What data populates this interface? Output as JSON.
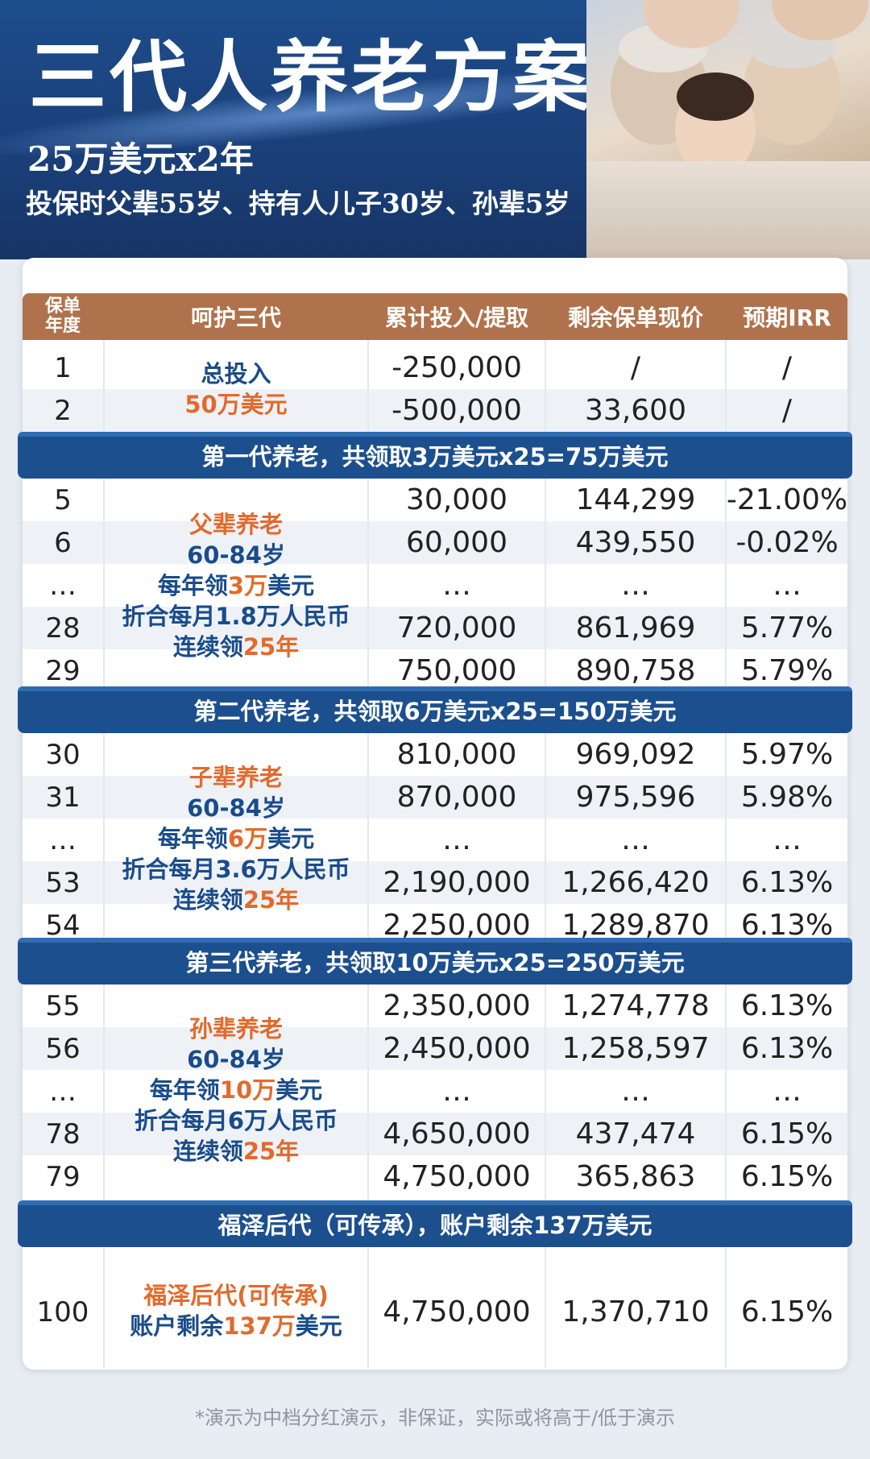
{
  "header": {
    "title": "三代人养老方案",
    "subtitle": "25万美元x2年",
    "subtitle2": "投保时父辈55岁、持有人儿子30岁、孙辈5岁"
  },
  "table": {
    "columns": [
      "保单年度",
      "呵护三代",
      "累计投入/提取",
      "剩余保单现价",
      "预期IRR"
    ],
    "column_year_line1": "保单",
    "column_year_line2": "年度",
    "intro": {
      "desc_line1": "总投入",
      "desc_line2": "50万美元",
      "rows": [
        {
          "year": "1",
          "amount": "-250,000",
          "value": "/",
          "irr": "/"
        },
        {
          "year": "2",
          "amount": "-500,000",
          "value": "33,600",
          "irr": "/"
        }
      ]
    },
    "sections": [
      {
        "banner": "第一代养老，共领取3万美元x25=75万美元",
        "desc": {
          "name": "父辈养老",
          "age": "60-84岁",
          "yearly_a": "每年领",
          "yearly_b": "3万",
          "yearly_c": "美元",
          "monthly": "折合每月1.8万人民币",
          "cont_a": "连续领",
          "cont_b": "25年"
        },
        "rows": [
          {
            "year": "5",
            "amount": "30,000",
            "value": "144,299",
            "irr": "-21.00%"
          },
          {
            "year": "6",
            "amount": "60,000",
            "value": "439,550",
            "irr": "-0.02%"
          },
          {
            "year": "…",
            "amount": "…",
            "value": "…",
            "irr": "…"
          },
          {
            "year": "28",
            "amount": "720,000",
            "value": "861,969",
            "irr": "5.77%"
          },
          {
            "year": "29",
            "amount": "750,000",
            "value": "890,758",
            "irr": "5.79%"
          }
        ]
      },
      {
        "banner": "第二代养老，共领取6万美元x25=150万美元",
        "desc": {
          "name": "子辈养老",
          "age": "60-84岁",
          "yearly_a": "每年领",
          "yearly_b": "6万",
          "yearly_c": "美元",
          "monthly": "折合每月3.6万人民币",
          "cont_a": "连续领",
          "cont_b": "25年"
        },
        "rows": [
          {
            "year": "30",
            "amount": "810,000",
            "value": "969,092",
            "irr": "5.97%"
          },
          {
            "year": "31",
            "amount": "870,000",
            "value": "975,596",
            "irr": "5.98%"
          },
          {
            "year": "…",
            "amount": "…",
            "value": "…",
            "irr": "…"
          },
          {
            "year": "53",
            "amount": "2,190,000",
            "value": "1,266,420",
            "irr": "6.13%"
          },
          {
            "year": "54",
            "amount": "2,250,000",
            "value": "1,289,870",
            "irr": "6.13%"
          }
        ]
      },
      {
        "banner": "第三代养老，共领取10万美元x25=250万美元",
        "desc": {
          "name": "孙辈养老",
          "age": "60-84岁",
          "yearly_a": "每年领",
          "yearly_b": "10万",
          "yearly_c": "美元",
          "monthly": "折合每月6万人民币",
          "cont_a": "连续领",
          "cont_b": "25年"
        },
        "rows": [
          {
            "year": "55",
            "amount": "2,350,000",
            "value": "1,274,778",
            "irr": "6.13%"
          },
          {
            "year": "56",
            "amount": "2,450,000",
            "value": "1,258,597",
            "irr": "6.13%"
          },
          {
            "year": "…",
            "amount": "…",
            "value": "…",
            "irr": "…"
          },
          {
            "year": "78",
            "amount": "4,650,000",
            "value": "437,474",
            "irr": "6.15%"
          },
          {
            "year": "79",
            "amount": "4,750,000",
            "value": "365,863",
            "irr": "6.15%"
          }
        ]
      }
    ],
    "legacy": {
      "banner": "福泽后代（可传承），账户剩余137万美元",
      "desc_line1": "福泽后代(可传承)",
      "desc_line2_a": "账户剩余",
      "desc_line2_b": "137万",
      "desc_line2_c": "美元",
      "row": {
        "year": "100",
        "amount": "4,750,000",
        "value": "1,370,710",
        "irr": "6.15%"
      }
    }
  },
  "footnote": "*演示为中档分红演示，非保证，实际或将高于/低于演示",
  "colors": {
    "header_blue": "#1c4f8e",
    "table_head_brown": "#b0724c",
    "highlight_orange": "#e36a2b",
    "desc_blue": "#1a4c8b"
  }
}
